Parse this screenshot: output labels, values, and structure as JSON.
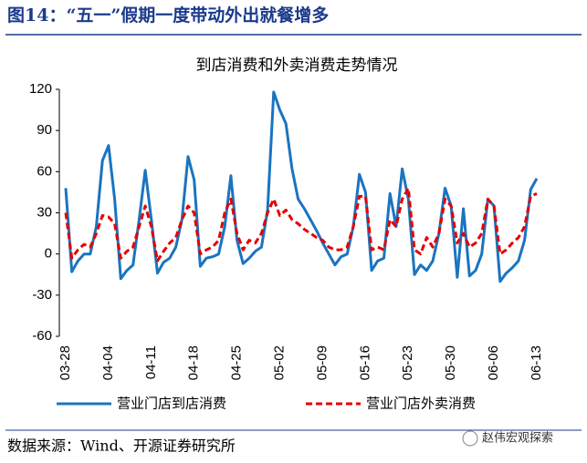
{
  "header": {
    "title": "图14：“五一”假期一度带动外出就餐增多"
  },
  "footer": {
    "source": "数据来源：Wind、开源证券研究所",
    "watermark": "赵伟宏观探索"
  },
  "chart_data": {
    "type": "line",
    "title": "到店消费和外卖消费走势情况",
    "categories": [
      "03-28",
      null,
      null,
      null,
      null,
      null,
      null,
      "04-04",
      null,
      null,
      null,
      null,
      null,
      null,
      "04-11",
      null,
      null,
      null,
      null,
      null,
      null,
      "04-18",
      null,
      null,
      null,
      null,
      null,
      null,
      "04-25",
      null,
      null,
      null,
      null,
      null,
      null,
      "05-02",
      null,
      null,
      null,
      null,
      null,
      null,
      "05-09",
      null,
      null,
      null,
      null,
      null,
      null,
      "05-16",
      null,
      null,
      null,
      null,
      null,
      null,
      "05-23",
      null,
      null,
      null,
      null,
      null,
      null,
      "05-30",
      null,
      null,
      null,
      null,
      null,
      null,
      "06-06",
      null,
      null,
      null,
      null,
      null,
      null,
      "06-13"
    ],
    "series": [
      {
        "name": "营业门店到店消费",
        "color": "#1a74c0",
        "dashed": false,
        "values": [
          48,
          -13,
          -5,
          0,
          0,
          20,
          68,
          79,
          40,
          -18,
          -12,
          -8,
          25,
          61,
          25,
          -14,
          -6,
          -3,
          5,
          25,
          71,
          54,
          -9,
          -3,
          -2,
          0,
          20,
          57,
          10,
          -7,
          -3,
          2,
          5,
          32,
          118,
          105,
          95,
          62,
          40,
          33,
          25,
          17,
          8,
          0,
          -8,
          -2,
          0,
          20,
          58,
          45,
          -12,
          -5,
          -3,
          44,
          20,
          62,
          40,
          -15,
          -8,
          -12,
          -5,
          15,
          48,
          35,
          -17,
          33,
          -16,
          -12,
          0,
          40,
          35,
          -20,
          -14,
          -10,
          -5,
          10,
          47,
          55
        ]
      },
      {
        "name": "营业门店外卖消费",
        "color": "#e60000",
        "dashed": true,
        "values": [
          30,
          -3,
          3,
          7,
          5,
          15,
          28,
          27,
          22,
          -3,
          2,
          5,
          20,
          35,
          20,
          -5,
          2,
          8,
          12,
          25,
          35,
          30,
          0,
          3,
          5,
          10,
          30,
          40,
          15,
          3,
          10,
          8,
          15,
          30,
          40,
          28,
          32,
          25,
          22,
          18,
          15,
          12,
          10,
          5,
          3,
          3,
          5,
          20,
          42,
          42,
          3,
          5,
          3,
          25,
          20,
          40,
          48,
          3,
          0,
          12,
          5,
          15,
          40,
          35,
          8,
          15,
          5,
          8,
          15,
          40,
          35,
          0,
          3,
          8,
          12,
          20,
          42,
          44
        ]
      }
    ],
    "ylim": [
      -60,
      120
    ],
    "yticks": [
      -60,
      -30,
      0,
      30,
      60,
      90,
      120
    ],
    "grid": false
  }
}
